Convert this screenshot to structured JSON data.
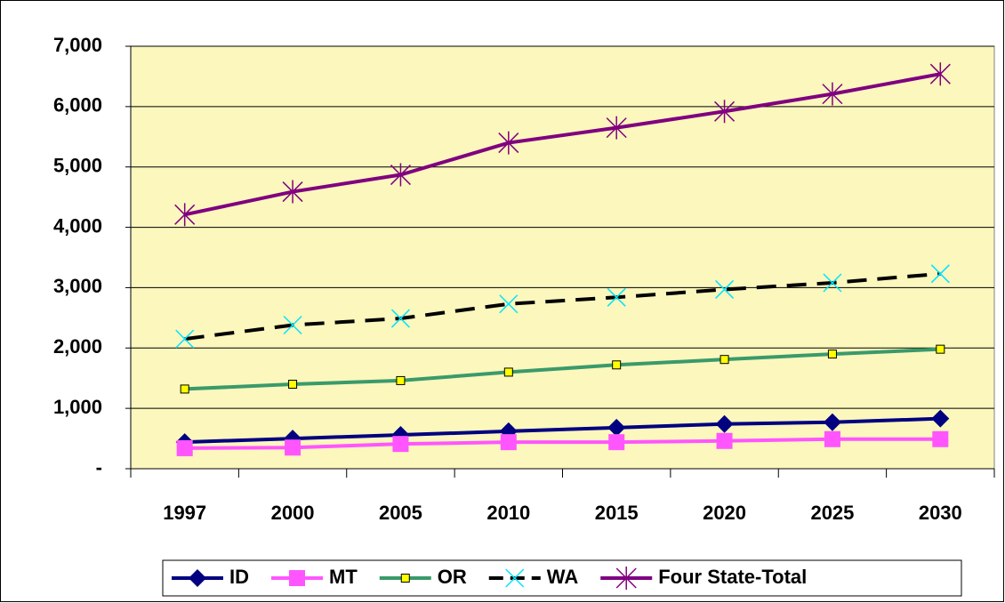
{
  "chart_data": {
    "type": "line",
    "categories": [
      "1997",
      "2000",
      "2005",
      "2010",
      "2015",
      "2020",
      "2025",
      "2030"
    ],
    "ylim": [
      0,
      7000
    ],
    "yticks": [
      {
        "value": 0,
        "label": "-"
      },
      {
        "value": 1000,
        "label": "1,000"
      },
      {
        "value": 2000,
        "label": "2,000"
      },
      {
        "value": 3000,
        "label": "3,000"
      },
      {
        "value": 4000,
        "label": "4,000"
      },
      {
        "value": 5000,
        "label": "5,000"
      },
      {
        "value": 6000,
        "label": "6,000"
      },
      {
        "value": 7000,
        "label": "7,000"
      }
    ],
    "grid": true,
    "legend": "bottom",
    "background": "#fbf7bd",
    "series": [
      {
        "name": "ID",
        "color": "#000080",
        "marker": "diamond",
        "dash": false,
        "values": [
          440,
          500,
          560,
          620,
          680,
          740,
          770,
          830
        ]
      },
      {
        "name": "MT",
        "color": "#ff55ff",
        "marker": "square",
        "dash": false,
        "values": [
          340,
          350,
          410,
          440,
          440,
          460,
          490,
          490
        ]
      },
      {
        "name": "OR",
        "color": "#3a9a6a",
        "marker": "small-square",
        "dash": false,
        "values": [
          1320,
          1400,
          1460,
          1600,
          1720,
          1810,
          1900,
          1980
        ]
      },
      {
        "name": "WA",
        "color": "#000000",
        "marker": "x",
        "dash": true,
        "values": [
          2150,
          2380,
          2490,
          2730,
          2840,
          2970,
          3080,
          3230
        ]
      },
      {
        "name": "Four State-Total",
        "color": "#800080",
        "marker": "star",
        "dash": false,
        "values": [
          4210,
          4590,
          4870,
          5400,
          5650,
          5920,
          6210,
          6540
        ]
      }
    ]
  }
}
